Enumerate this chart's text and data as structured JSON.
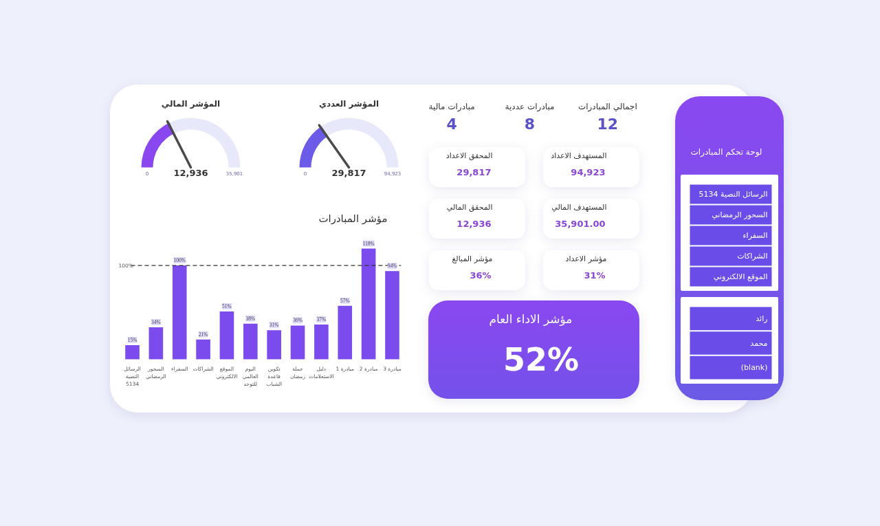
{
  "chart_data": [
    {
      "type": "other",
      "title": "لوحة تحكم المبادرات",
      "categories": [
        "الرسائل النصية 5134",
        "السحور الرمضاني",
        "السفراء",
        "الشراكات",
        "الموقع الالكتروني"
      ],
      "color": "#6a4de8"
    },
    {
      "type": "other",
      "categories": [
        "رائد",
        "محمد",
        "(blank)"
      ],
      "color": "#6a4de8"
    },
    {
      "type": "other",
      "categories": [
        "اجمالي المبادرات",
        "مبادرات عددية",
        "مبادرات مالية"
      ],
      "values": [
        12,
        8,
        4
      ],
      "data_labels": true
    },
    {
      "type": "other",
      "categories": [
        "المستهدف الاعداد",
        "المحقق الاعداد",
        "المستهدف المالي",
        "المحقق المالي",
        "مؤشر الاعداد",
        "مؤشر المبالغ"
      ],
      "values": [
        94923,
        29817,
        35901.0,
        12936,
        31,
        36
      ],
      "value_labels": [
        "94,923",
        "29,817",
        "35,901.00",
        "12,936",
        "31%",
        "36%"
      ]
    },
    {
      "type": "other",
      "title": "مؤشر الاداء العام",
      "values": [
        52
      ],
      "value_labels": [
        "52%"
      ],
      "color": "#7451ea"
    },
    {
      "type": "donut",
      "title": "المؤشر العددي",
      "categories": [
        null,
        null
      ],
      "values": [
        31.4,
        68.6
      ],
      "colors": [
        "#6b5be8",
        "#e8e8fb"
      ],
      "needle": null,
      "annotations": [
        "0",
        "29,817",
        "94,923"
      ]
    },
    {
      "type": "donut",
      "title": "المؤشر المالي",
      "categories": [
        null,
        null
      ],
      "values": [
        36,
        64
      ],
      "colors": [
        "#8a47f0",
        "#e8e8fb"
      ],
      "needle": null,
      "annotations": [
        "0",
        "12,936",
        "35,901"
      ]
    },
    {
      "type": "bar",
      "title": "مؤشر المبادرات",
      "categories": [
        "الرسائل النصية 5134",
        "السحور الرمضاني",
        "السفراء",
        "الشراكات",
        "الموقع الالكتروني",
        "اليوم العالمي للتوحد",
        "تكوين قاعدة الشباب",
        "حملة رمضان",
        "دليل الاستعلامات",
        "مبادرة 1",
        "مبادرة 2",
        "مبادرة 3"
      ],
      "values": [
        15,
        34,
        100,
        21,
        51,
        38,
        31,
        36,
        37,
        57,
        118,
        94
      ],
      "value_labels": [
        "15%",
        "34%",
        "100%",
        "21%",
        "51%",
        "38%",
        "31%",
        "36%",
        "37%",
        "57%",
        "118%",
        "94%"
      ],
      "color": "#7b4bee",
      "ref_lines": [
        {
          "axis": "y",
          "value": 100,
          "label": "100%",
          "line_style": "dashed",
          "color": "#333333"
        }
      ],
      "tick_labels": "x"
    }
  ]
}
